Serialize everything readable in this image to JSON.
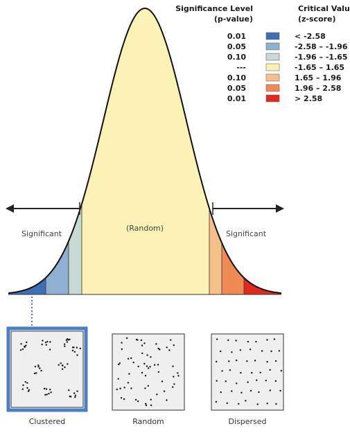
{
  "legend": {
    "significance_header": [
      "Significance Level",
      "(p-value)"
    ],
    "critical_header": [
      "Critical Value",
      "(z-score)"
    ],
    "rows": [
      {
        "p": "0.01",
        "z": "< -2.58",
        "color": "#3d6fb6"
      },
      {
        "p": "0.05",
        "z": "-2.58 – -1.96",
        "color": "#8fb0d3"
      },
      {
        "p": "0.10",
        "z": "-1.96 – -1.65",
        "color": "#c9d9d4"
      },
      {
        "p": "---",
        "z": "-1.65 – 1.65",
        "color": "#fbf3b5"
      },
      {
        "p": "0.10",
        "z": "1.65 – 1.96",
        "color": "#f6c08a"
      },
      {
        "p": "0.05",
        "z": "1.96 – 2.58",
        "color": "#ef8a55"
      },
      {
        "p": "0.01",
        "z": "> 2.58",
        "color": "#e02a1f"
      }
    ]
  },
  "curve": {
    "center_label": "(Random)",
    "left_label": "Significant",
    "right_label": "Significant"
  },
  "patterns": [
    {
      "label": "Clustered",
      "kind": "clustered",
      "highlight_color": "#4a7fc8"
    },
    {
      "label": "Random",
      "kind": "random"
    },
    {
      "label": "Dispersed",
      "kind": "dispersed"
    }
  ]
}
